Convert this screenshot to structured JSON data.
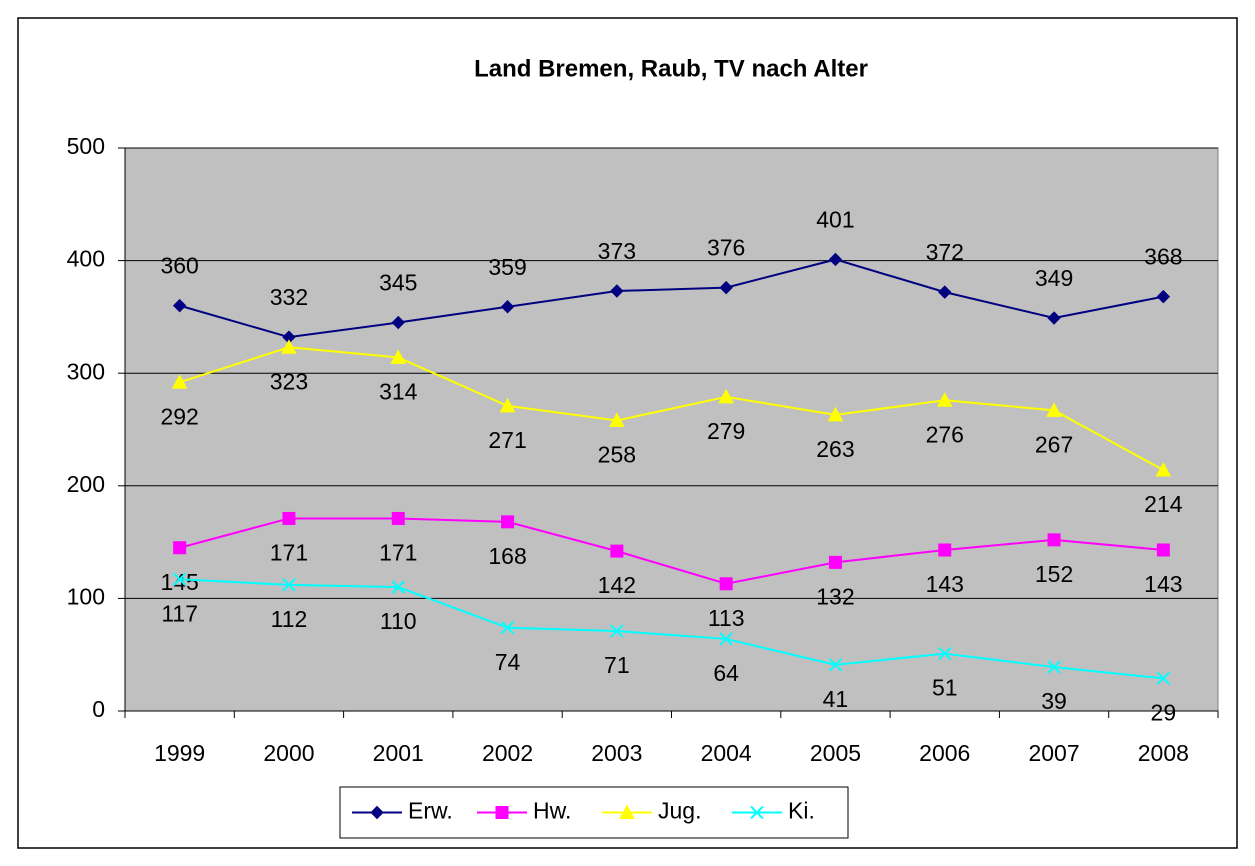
{
  "chart_data": {
    "type": "line",
    "title": "Land Bremen, Raub, TV nach Alter",
    "categories": [
      "1999",
      "2000",
      "2001",
      "2002",
      "2003",
      "2004",
      "2005",
      "2006",
      "2007",
      "2008"
    ],
    "series": [
      {
        "name": "Erw.",
        "color": "#000080",
        "marker": "diamond",
        "values": [
          360,
          332,
          345,
          359,
          373,
          376,
          401,
          372,
          349,
          368
        ]
      },
      {
        "name": "Hw.",
        "color": "#ff00ff",
        "marker": "square",
        "values": [
          145,
          171,
          171,
          168,
          142,
          113,
          132,
          143,
          152,
          143
        ]
      },
      {
        "name": "Jug.",
        "color": "#ffff00",
        "marker": "triangle",
        "values": [
          292,
          323,
          314,
          271,
          258,
          279,
          263,
          276,
          267,
          214
        ]
      },
      {
        "name": "Ki.",
        "color": "#00ffff",
        "marker": "x",
        "values": [
          117,
          112,
          110,
          74,
          71,
          64,
          41,
          51,
          39,
          29
        ]
      }
    ],
    "ylim": [
      0,
      500
    ],
    "yticks": [
      0,
      100,
      200,
      300,
      400,
      500
    ],
    "grid": true,
    "legend": "bottom"
  }
}
